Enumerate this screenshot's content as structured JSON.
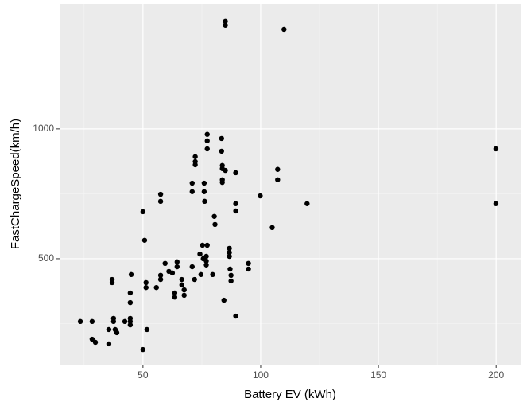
{
  "chart_data": {
    "type": "scatter",
    "x_label": "Battery EV (kWh)",
    "y_label": "FastChargeSpeed(km/h)",
    "x": [
      23.4,
      28.4,
      28.4,
      29.8,
      35.5,
      35.5,
      36.9,
      36.9,
      37.5,
      37.5,
      38.2,
      38.9,
      42.3,
      44.6,
      44.6,
      44.6,
      44.6,
      44.6,
      45,
      50,
      50,
      50.7,
      51.3,
      51.3,
      51.7,
      55.7,
      57.5,
      57.5,
      57.5,
      57.5,
      59.4,
      61,
      62.5,
      63.5,
      63.5,
      64.5,
      64.5,
      66.5,
      66.5,
      67.5,
      67.5,
      70.9,
      70.9,
      70.9,
      71.9,
      72.2,
      72.2,
      72.2,
      74.2,
      74.6,
      75.3,
      75.6,
      76,
      76,
      76.2,
      76.9,
      76.9,
      76.9,
      77.3,
      77.3,
      77.3,
      77.3,
      79.6,
      80.3,
      80.6,
      83.4,
      83.4,
      83.7,
      83.7,
      83.7,
      83.7,
      84.4,
      85,
      85,
      85,
      86.7,
      86.7,
      86.7,
      87,
      87.4,
      87.4,
      89.4,
      89.4,
      89.4,
      89.4,
      94.8,
      94.8,
      99.8,
      104.9,
      107.2,
      107.2,
      109.9,
      119.7,
      199.9,
      199.9
    ],
    "values": [
      258,
      258,
      190,
      178,
      227,
      172,
      420,
      408,
      270,
      258,
      227,
      215,
      258,
      270,
      258,
      245,
      331,
      368,
      439,
      681,
      150,
      571,
      408,
      389,
      227,
      389,
      420,
      436,
      748,
      721,
      482,
      451,
      445,
      368,
      352,
      469,
      488,
      420,
      399,
      380,
      359,
      469,
      791,
      758,
      420,
      893,
      874,
      862,
      518,
      439,
      552,
      500,
      758,
      791,
      721,
      509,
      491,
      476,
      552,
      979,
      954,
      923,
      439,
      663,
      632,
      963,
      914,
      859,
      847,
      804,
      794,
      340,
      840,
      1399,
      1414,
      540,
      524,
      509,
      460,
      436,
      414,
      712,
      684,
      831,
      279,
      482,
      460,
      742,
      620,
      844,
      804,
      1383,
      712,
      923,
      712
    ],
    "color": "#000000",
    "xlim": [
      14.6,
      210.4
    ],
    "ylim": [
      92,
      1481
    ],
    "xticks": [
      50,
      100,
      150,
      200
    ],
    "yticks": [
      500,
      1000
    ],
    "xminor": [
      25,
      75,
      125,
      175
    ],
    "yminor": [
      250,
      750,
      1250
    ],
    "grid": true
  }
}
